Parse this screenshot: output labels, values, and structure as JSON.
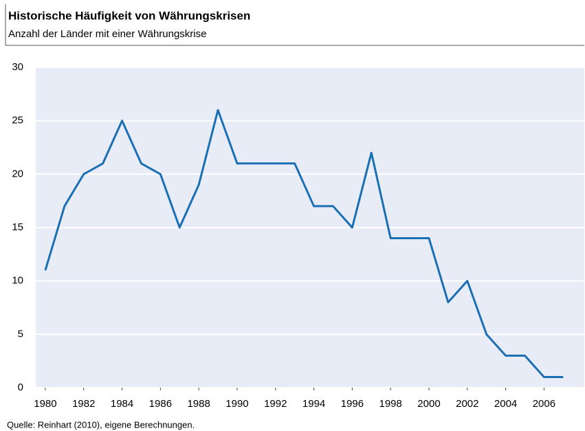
{
  "chart_data": {
    "type": "line",
    "title": "Historische Häufigkeit von Währungskrisen",
    "subtitle": "Anzahl der Länder mit einer Währungskrise",
    "source": "Quelle: Reinhart (2010), eigene Berechnungen.",
    "x": [
      1980,
      1981,
      1982,
      1983,
      1984,
      1985,
      1986,
      1987,
      1988,
      1989,
      1990,
      1991,
      1992,
      1993,
      1994,
      1995,
      1996,
      1997,
      1998,
      1999,
      2000,
      2001,
      2002,
      2003,
      2004,
      2005,
      2006,
      2007
    ],
    "series": [
      {
        "color": "#1a6fb4",
        "values": [
          11,
          17,
          20,
          21,
          25,
          21,
          20,
          15,
          19,
          26,
          21,
          21,
          21,
          21,
          17,
          17,
          15,
          22,
          14,
          14,
          14,
          8,
          10,
          5,
          3,
          3,
          1,
          1
        ]
      }
    ],
    "xlim": [
      1979.5,
      2008.1
    ],
    "xticks": [
      1980,
      1982,
      1984,
      1986,
      1988,
      1990,
      1992,
      1994,
      1996,
      1998,
      2000,
      2002,
      2004,
      2006
    ],
    "ylim": [
      0,
      30
    ],
    "yticks": [
      0,
      5,
      10,
      15,
      20,
      25,
      30
    ],
    "grid": true
  }
}
